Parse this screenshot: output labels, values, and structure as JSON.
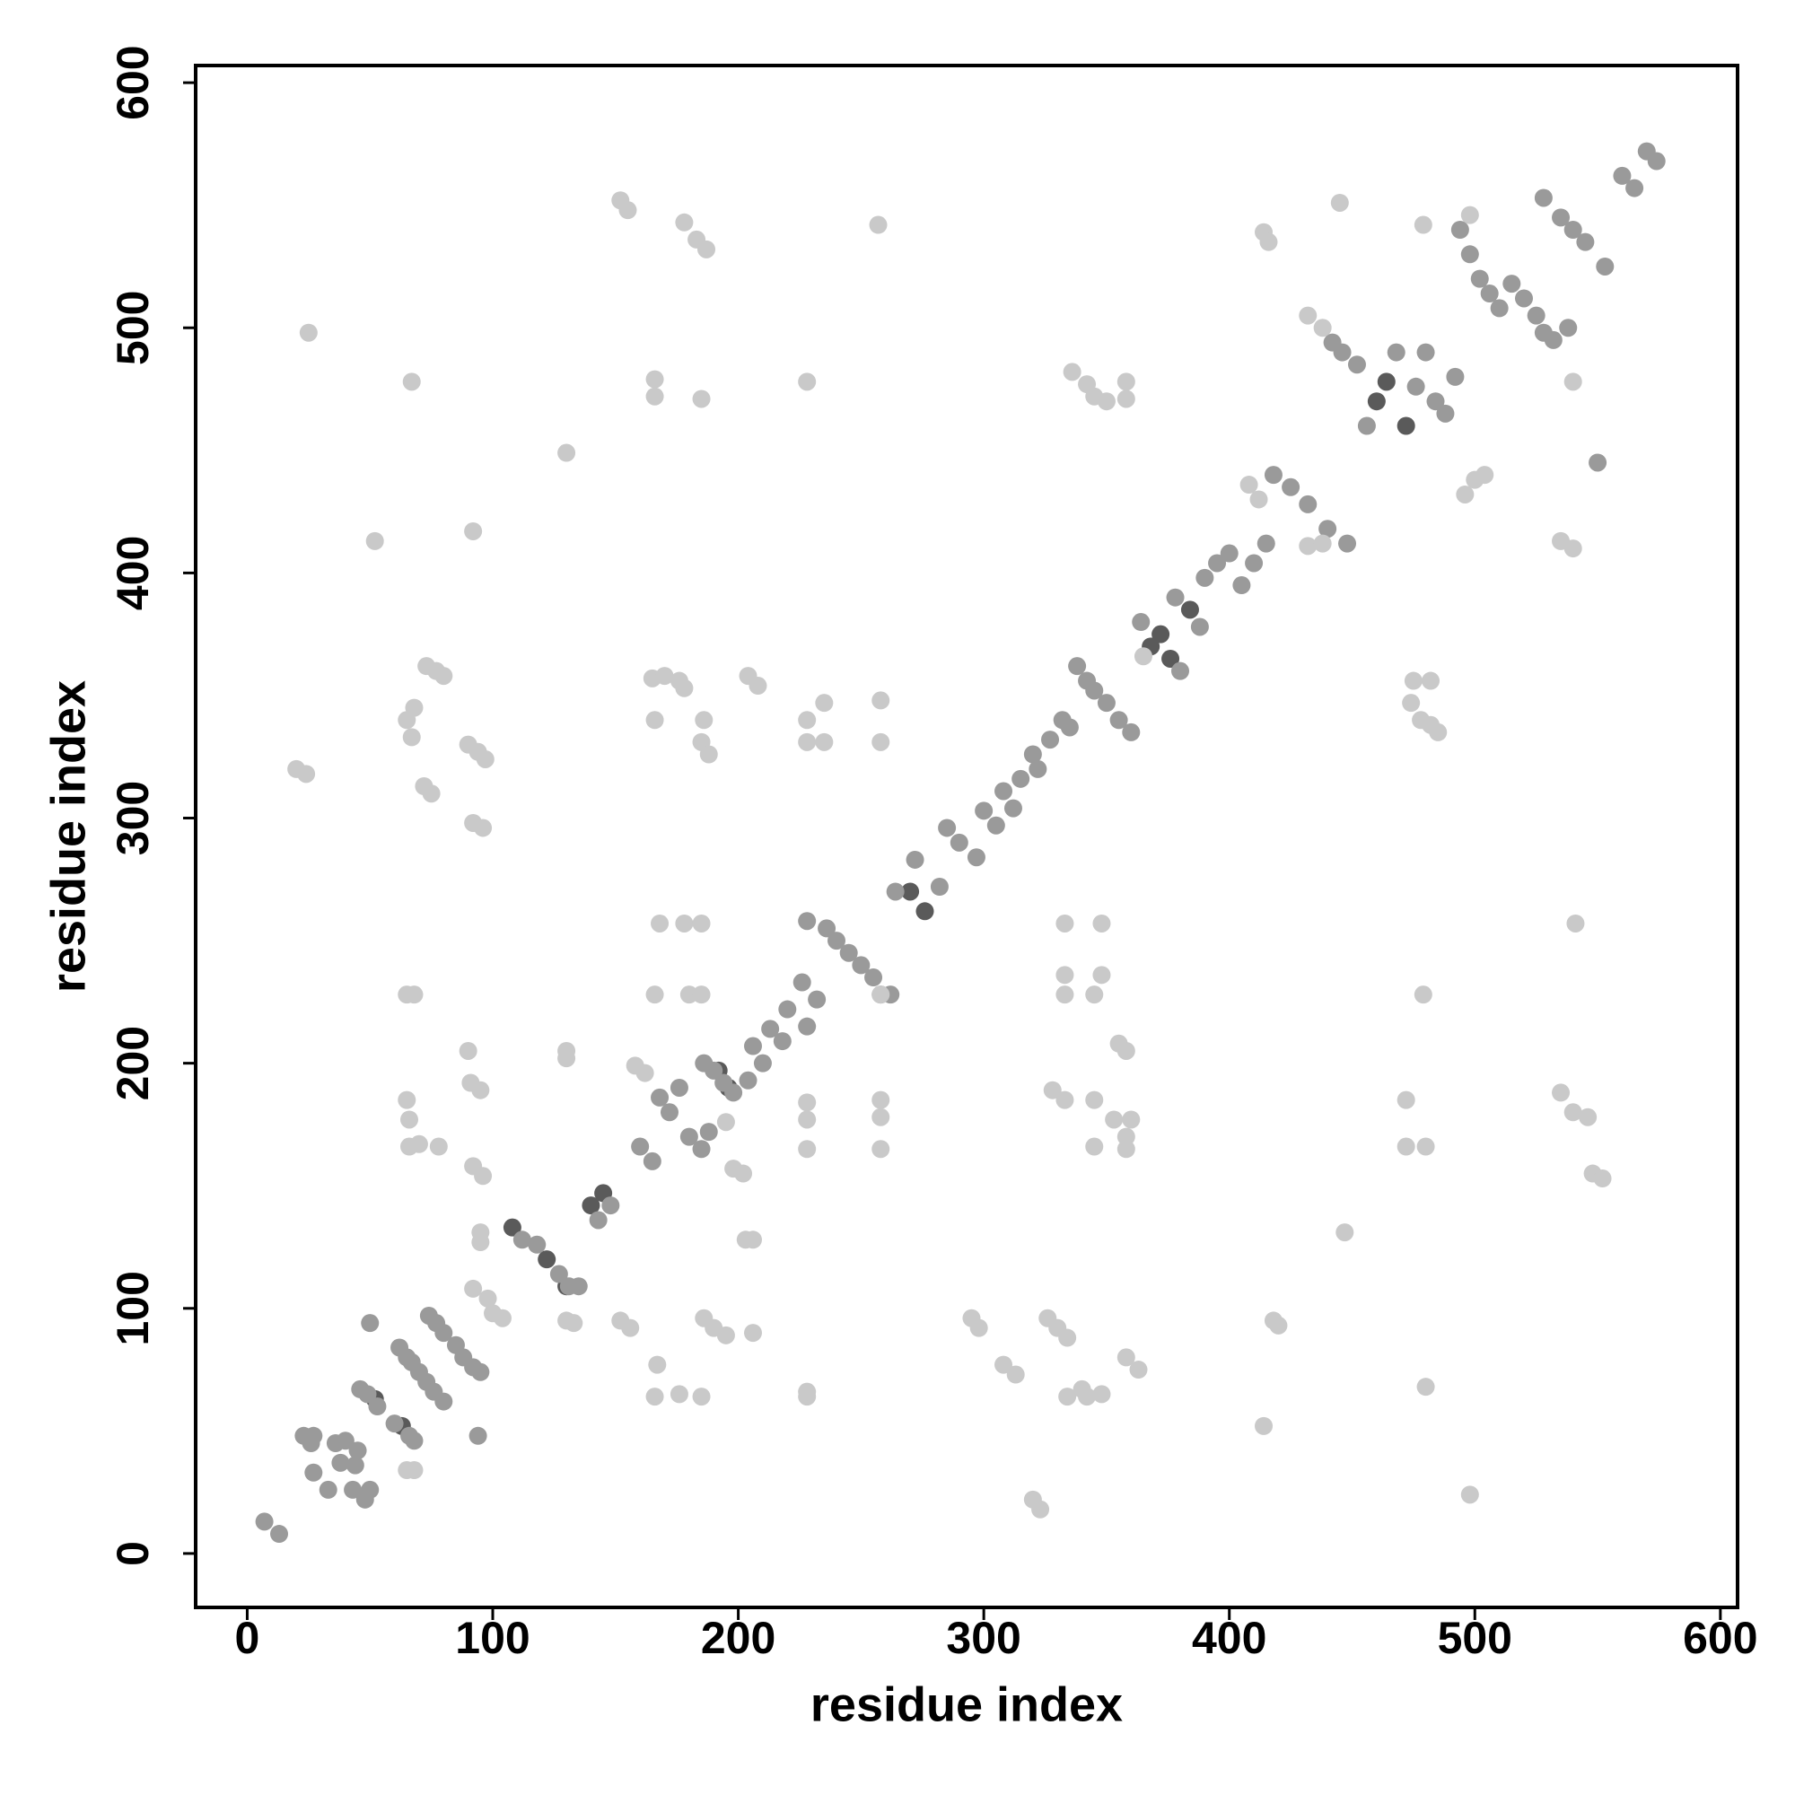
{
  "chart_data": {
    "type": "scatter",
    "xlabel": "residue index",
    "ylabel": "residue index",
    "xlim": [
      -21,
      607
    ],
    "ylim": [
      -22,
      607
    ],
    "xticks": [
      0,
      100,
      200,
      300,
      400,
      500,
      600
    ],
    "yticks": [
      0,
      100,
      200,
      300,
      400,
      500,
      600
    ],
    "grid": false,
    "series": [
      {
        "color": "#5a5a5a",
        "x": [
          52,
          63,
          108,
          122,
          130,
          140,
          145,
          192,
          196,
          270,
          276,
          372,
          368,
          376,
          384,
          472,
          460,
          464
        ],
        "y": [
          63,
          52,
          133,
          120,
          109,
          142,
          147,
          197,
          190,
          270,
          262,
          375,
          370,
          365,
          385,
          460,
          470,
          478
        ]
      },
      {
        "color": "#9a9a9a",
        "x": [
          7,
          13,
          23,
          27,
          26,
          27,
          33,
          36,
          40,
          38,
          45,
          44,
          43,
          48,
          50,
          46,
          49,
          53,
          60,
          62,
          65,
          66,
          68,
          67,
          70,
          74,
          77,
          80,
          73,
          76,
          80,
          85,
          88,
          92,
          95,
          50,
          94,
          112,
          118,
          127,
          131,
          135,
          143,
          148,
          160,
          165,
          168,
          172,
          176,
          180,
          185,
          188,
          186,
          190,
          194,
          198,
          204,
          206,
          210,
          213,
          218,
          220,
          228,
          226,
          232,
          228,
          236,
          240,
          245,
          250,
          255,
          258,
          262,
          264,
          272,
          282,
          285,
          290,
          297,
          300,
          305,
          308,
          312,
          315,
          322,
          320,
          327,
          332,
          335,
          338,
          342,
          345,
          350,
          355,
          360,
          364,
          380,
          378,
          388,
          390,
          395,
          400,
          405,
          410,
          415,
          418,
          425,
          432,
          440,
          448,
          442,
          446,
          452,
          456,
          468,
          476,
          480,
          484,
          488,
          492,
          494,
          498,
          502,
          506,
          510,
          515,
          520,
          525,
          528,
          532,
          535,
          540,
          545,
          528,
          538,
          550,
          553,
          560,
          565,
          570,
          574
        ],
        "y": [
          13,
          8,
          48,
          48,
          45,
          33,
          26,
          45,
          46,
          37,
          42,
          36,
          26,
          22,
          26,
          67,
          65,
          60,
          53,
          84,
          80,
          48,
          46,
          78,
          74,
          97,
          94,
          90,
          70,
          66,
          62,
          85,
          80,
          76,
          74,
          94,
          48,
          128,
          126,
          114,
          109,
          109,
          136,
          142,
          166,
          160,
          186,
          180,
          190,
          170,
          165,
          172,
          200,
          197,
          192,
          188,
          193,
          207,
          200,
          214,
          209,
          222,
          215,
          233,
          226,
          258,
          255,
          250,
          245,
          240,
          235,
          228,
          228,
          270,
          283,
          272,
          296,
          290,
          284,
          303,
          297,
          311,
          304,
          316,
          320,
          326,
          332,
          340,
          337,
          362,
          356,
          352,
          347,
          340,
          335,
          380,
          360,
          390,
          378,
          398,
          404,
          408,
          395,
          404,
          412,
          440,
          435,
          428,
          418,
          412,
          494,
          490,
          485,
          460,
          490,
          476,
          490,
          470,
          465,
          480,
          540,
          530,
          520,
          514,
          508,
          518,
          512,
          505,
          498,
          495,
          545,
          540,
          535,
          553,
          500,
          445,
          525,
          562,
          557,
          572,
          568
        ]
      },
      {
        "color": "#c9c9c9",
        "x": [
          20,
          24,
          25,
          52,
          67,
          65,
          68,
          67,
          72,
          75,
          73,
          77,
          80,
          90,
          94,
          97,
          92,
          96,
          92,
          65,
          68,
          65,
          66,
          66,
          70,
          78,
          90,
          91,
          95,
          92,
          96,
          95,
          95,
          92,
          98,
          100,
          104,
          65,
          68,
          130,
          133,
          130,
          130,
          130,
          152,
          155,
          152,
          156,
          158,
          162,
          166,
          167,
          166,
          168,
          166,
          165,
          170,
          166,
          166,
          178,
          183,
          187,
          178,
          180,
          185,
          185,
          186,
          185,
          188,
          178,
          176,
          185,
          176,
          185,
          186,
          190,
          195,
          195,
          198,
          202,
          203,
          206,
          204,
          208,
          206,
          228,
          228,
          228,
          228,
          228,
          228,
          228,
          228,
          235,
          235,
          257,
          258,
          258,
          258,
          258,
          258,
          258,
          295,
          298,
          308,
          313,
          320,
          323,
          326,
          330,
          334,
          334,
          340,
          342,
          348,
          328,
          333,
          345,
          345,
          333,
          333,
          345,
          348,
          333,
          348,
          355,
          358,
          353,
          358,
          358,
          360,
          358,
          363,
          336,
          342,
          345,
          350,
          358,
          358,
          365,
          414,
          416,
          414,
          418,
          420,
          447,
          445,
          475,
          482,
          474,
          478,
          482,
          485,
          472,
          472,
          480,
          479,
          480,
          498,
          498,
          479,
          541,
          535,
          540,
          546,
          548,
          552,
          535,
          540,
          540,
          432,
          438,
          408,
          412,
          432,
          438,
          496,
          500,
          504
        ],
        "y": [
          320,
          318,
          498,
          413,
          478,
          340,
          345,
          333,
          313,
          310,
          362,
          360,
          358,
          330,
          327,
          324,
          298,
          296,
          417,
          228,
          228,
          185,
          177,
          166,
          167,
          166,
          205,
          192,
          189,
          158,
          154,
          131,
          127,
          108,
          104,
          98,
          96,
          34,
          34,
          95,
          94,
          205,
          202,
          449,
          552,
          548,
          95,
          92,
          199,
          196,
          64,
          77,
          228,
          257,
          340,
          357,
          358,
          472,
          479,
          543,
          536,
          532,
          257,
          228,
          228,
          257,
          340,
          331,
          326,
          353,
          356,
          471,
          65,
          64,
          96,
          92,
          89,
          176,
          157,
          155,
          128,
          128,
          358,
          354,
          90,
          64,
          66,
          165,
          177,
          184,
          340,
          331,
          478,
          347,
          331,
          542,
          348,
          331,
          185,
          178,
          165,
          228,
          96,
          92,
          77,
          73,
          22,
          18,
          96,
          92,
          88,
          64,
          67,
          64,
          65,
          189,
          185,
          185,
          166,
          236,
          228,
          228,
          236,
          257,
          257,
          208,
          205,
          177,
          170,
          165,
          177,
          80,
          75,
          482,
          477,
          472,
          470,
          478,
          471,
          366,
          539,
          535,
          52,
          95,
          93,
          131,
          551,
          356,
          356,
          347,
          340,
          338,
          335,
          185,
          166,
          166,
          228,
          68,
          24,
          546,
          542,
          257,
          188,
          180,
          178,
          155,
          153,
          413,
          410,
          478,
          411,
          412,
          436,
          430,
          505,
          500,
          432,
          438,
          440
        ]
      }
    ]
  }
}
